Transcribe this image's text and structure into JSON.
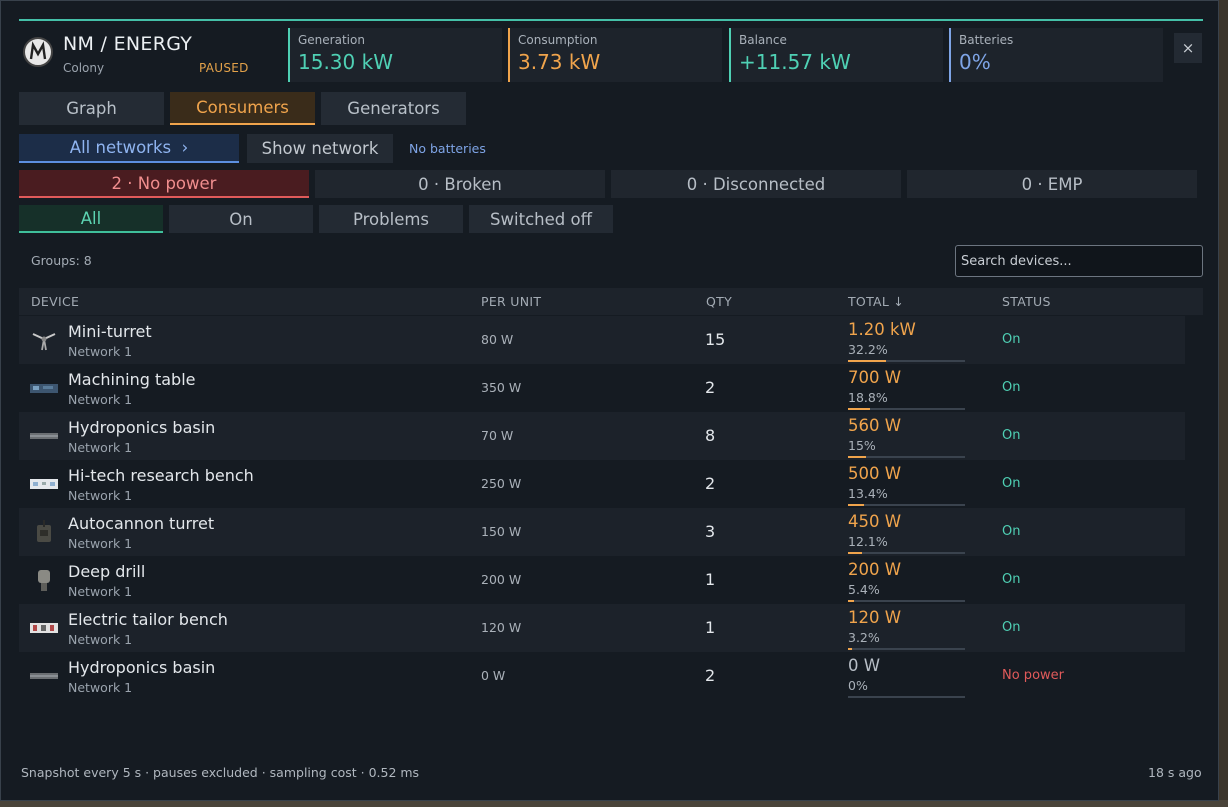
{
  "header": {
    "title": "NM / ENERGY",
    "subtitle": "Colony",
    "state": "PAUSED"
  },
  "stats": [
    {
      "label": "Generation",
      "value": "15.30 kW",
      "color": "#4fd0b4"
    },
    {
      "label": "Consumption",
      "value": "3.73 kW",
      "color": "#f0a44c"
    },
    {
      "label": "Balance",
      "value": "+11.57 kW",
      "color": "#4fd0b4"
    },
    {
      "label": "Batteries",
      "value": "0%",
      "color": "#7ea4e6"
    }
  ],
  "close_label": "×",
  "tabs": [
    {
      "label": "Graph",
      "active": false
    },
    {
      "label": "Consumers",
      "active": true
    },
    {
      "label": "Generators",
      "active": false
    }
  ],
  "network": {
    "all_label": "All networks  ›",
    "show_label": "Show network",
    "note": "No batteries"
  },
  "problem_chips": [
    {
      "label": "2 · No power"
    },
    {
      "label": "0 · Broken"
    },
    {
      "label": "0 · Disconnected"
    },
    {
      "label": "0 · EMP"
    }
  ],
  "filters": [
    {
      "label": "All",
      "active": true
    },
    {
      "label": "On",
      "active": false
    },
    {
      "label": "Problems",
      "active": false
    },
    {
      "label": "Switched off",
      "active": false
    }
  ],
  "groups_label": "Groups: 8",
  "search": {
    "placeholder": "Search devices...",
    "value": ""
  },
  "table": {
    "headers": [
      "DEVICE",
      "PER UNIT",
      "QTY",
      "TOTAL ↓",
      "STATUS"
    ],
    "rows": [
      {
        "icon": "mini-turret-icon",
        "name": "Mini-turret",
        "network": "Network 1",
        "per_unit": "80 W",
        "qty": "15",
        "total": "1.20 kW",
        "share": "32.2%",
        "share_value": 0.322,
        "status": "On"
      },
      {
        "icon": "machining-table-icon",
        "name": "Machining table",
        "network": "Network 1",
        "per_unit": "350 W",
        "qty": "2",
        "total": "700 W",
        "share": "18.8%",
        "share_value": 0.188,
        "status": "On"
      },
      {
        "icon": "hydroponics-basin-icon",
        "name": "Hydroponics basin",
        "network": "Network 1",
        "per_unit": "70 W",
        "qty": "8",
        "total": "560 W",
        "share": "15%",
        "share_value": 0.15,
        "status": "On"
      },
      {
        "icon": "research-bench-icon",
        "name": "Hi-tech research bench",
        "network": "Network 1",
        "per_unit": "250 W",
        "qty": "2",
        "total": "500 W",
        "share": "13.4%",
        "share_value": 0.134,
        "status": "On"
      },
      {
        "icon": "autocannon-turret-icon",
        "name": "Autocannon turret",
        "network": "Network 1",
        "per_unit": "150 W",
        "qty": "3",
        "total": "450 W",
        "share": "12.1%",
        "share_value": 0.121,
        "status": "On"
      },
      {
        "icon": "deep-drill-icon",
        "name": "Deep drill",
        "network": "Network 1",
        "per_unit": "200 W",
        "qty": "1",
        "total": "200 W",
        "share": "5.4%",
        "share_value": 0.054,
        "status": "On"
      },
      {
        "icon": "tailor-bench-icon",
        "name": "Electric tailor bench",
        "network": "Network 1",
        "per_unit": "120 W",
        "qty": "1",
        "total": "120 W",
        "share": "3.2%",
        "share_value": 0.032,
        "status": "On"
      },
      {
        "icon": "hydroponics-basin-icon",
        "name": "Hydroponics basin",
        "network": "Network 1",
        "per_unit": "0 W",
        "qty": "2",
        "total": "0 W",
        "share": "0%",
        "share_value": 0,
        "status": "No power"
      }
    ]
  },
  "footer": {
    "left": "Snapshot every 5 s · pauses excluded · sampling cost  ·  0.52 ms",
    "right": "18 s ago"
  },
  "colors": {
    "accent_orange": "#f0a44c",
    "accent_teal": "#4fd0b4",
    "accent_blue": "#7ea4e6",
    "status_on": "#4fd0b4",
    "status_no_power": "#e05a5a"
  }
}
